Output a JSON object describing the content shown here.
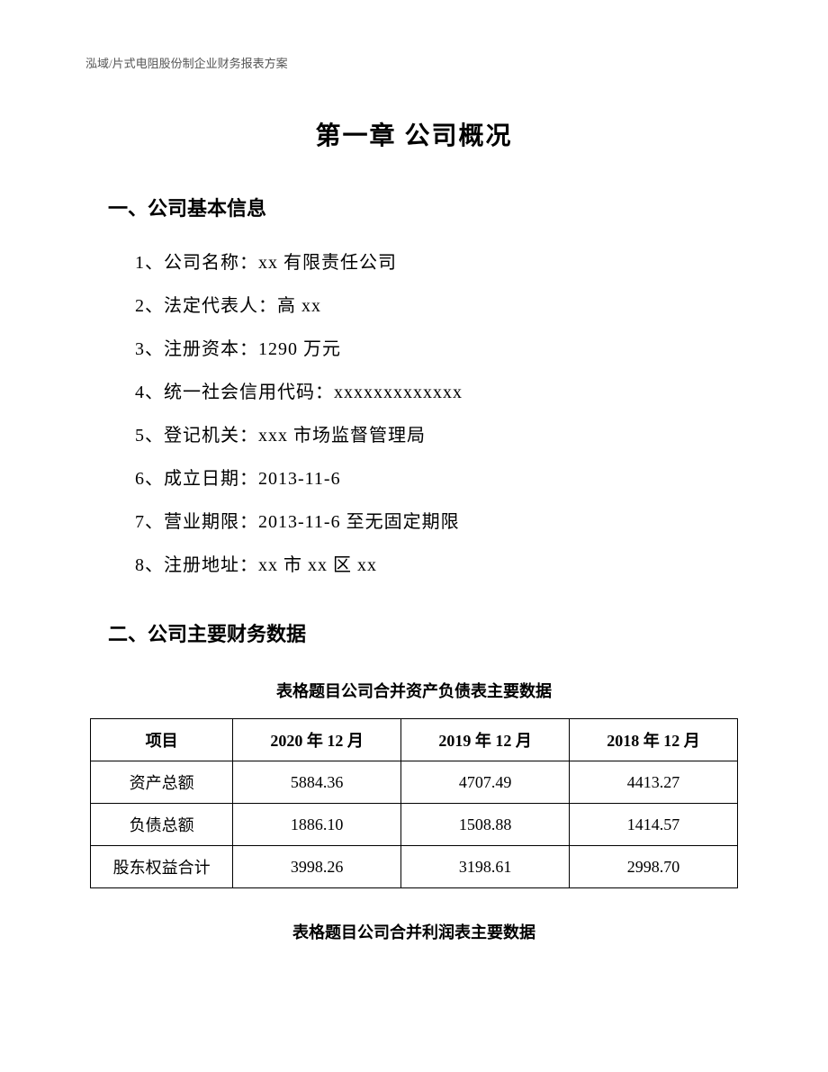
{
  "header": {
    "text": "泓域/片式电阻股份制企业财务报表方案"
  },
  "chapter": {
    "title": "第一章 公司概况"
  },
  "section1": {
    "heading": "一、公司基本信息",
    "items": [
      "1、公司名称：xx 有限责任公司",
      "2、法定代表人：高 xx",
      "3、注册资本：1290 万元",
      "4、统一社会信用代码：xxxxxxxxxxxxx",
      "5、登记机关：xxx 市场监督管理局",
      "6、成立日期：2013-11-6",
      "7、营业期限：2013-11-6 至无固定期限",
      "8、注册地址：xx 市 xx 区 xx"
    ]
  },
  "section2": {
    "heading": "二、公司主要财务数据"
  },
  "table1": {
    "caption": "表格题目公司合并资产负债表主要数据",
    "columns": [
      "项目",
      "2020 年 12 月",
      "2019 年 12 月",
      "2018 年 12 月"
    ],
    "rows": [
      [
        "资产总额",
        "5884.36",
        "4707.49",
        "4413.27"
      ],
      [
        "负债总额",
        "1886.10",
        "1508.88",
        "1414.57"
      ],
      [
        "股东权益合计",
        "3998.26",
        "3198.61",
        "2998.70"
      ]
    ]
  },
  "table2": {
    "caption": "表格题目公司合并利润表主要数据"
  }
}
